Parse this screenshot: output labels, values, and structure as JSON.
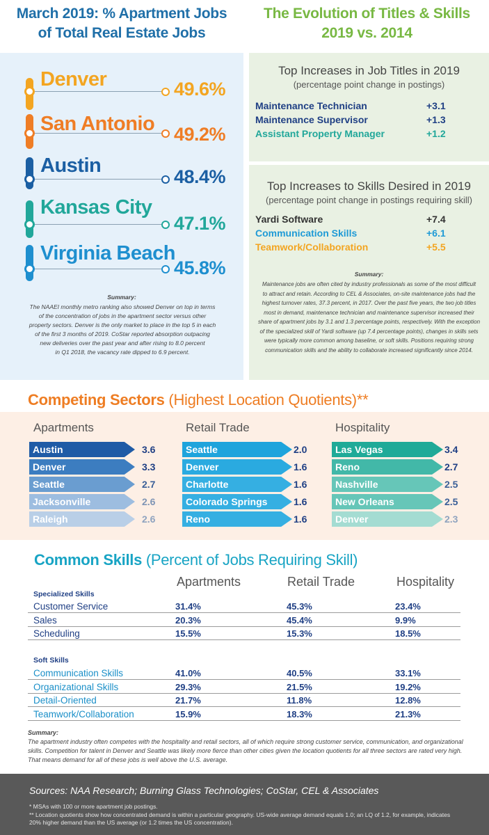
{
  "titles": {
    "left": [
      "March 2019: % Apartment Jobs",
      "of Total Real Estate Jobs"
    ],
    "right": [
      "The Evolution of Titles & Skills",
      "2019 vs. 2014"
    ]
  },
  "metro": {
    "items": [
      {
        "city": "Denver",
        "pct": "49.6%",
        "color": "#f3a521"
      },
      {
        "city": "San Antonio",
        "pct": "49.2%",
        "color": "#ef7d25"
      },
      {
        "city": "Austin",
        "pct": "48.4%",
        "color": "#1b5fa3"
      },
      {
        "city": "Kansas City",
        "pct": "47.1%",
        "color": "#21a79a"
      },
      {
        "city": "Virginia Beach",
        "pct": "45.8%",
        "color": "#1e8fcf"
      }
    ],
    "summary_label": "Summary:",
    "summary_lines": [
      "The NAAEI monthly metro ranking also showed Denver on top in terms",
      "of the concentration of jobs in the apartment sector versus other",
      "property sectors. Denver is the only market to place in the top 5 in each",
      "of the first 3 months of 2019. CoStar reported absorption outpacing",
      "new deliveries over the past year and after rising to 8.0 percent",
      "in Q1 2018, the vacancy rate dipped to 6.9 percent."
    ]
  },
  "job_titles": {
    "heading": "Top Increases in Job Titles in 2019",
    "subheading": "(percentage point change in postings)",
    "items": [
      {
        "name": "Maintenance Technician",
        "value": "+3.1",
        "color": "#1f3f84"
      },
      {
        "name": "Maintenance Supervisor",
        "value": "+1.3",
        "color": "#1f3f84"
      },
      {
        "name": "Assistant Property Manager",
        "value": "+1.2",
        "color": "#21a79a"
      }
    ]
  },
  "skills_desired": {
    "heading": "Top Increases to Skills Desired in 2019",
    "subheading": "(percentage point change in postings requiring skill)",
    "items": [
      {
        "name": "Yardi Software",
        "value": "+7.4",
        "color": "#333333"
      },
      {
        "name": "Communication Skills",
        "value": "+6.1",
        "color": "#1e9ad6"
      },
      {
        "name": "Teamwork/Collaboration",
        "value": "+5.5",
        "color": "#f3a521"
      }
    ],
    "summary_label": "Summary:",
    "summary_lines": [
      "Maintenance jobs are often cited by industry professionals as some of the most difficult",
      "to attract and retain. According to CEL & Associates, on-site maintenance jobs had the",
      "highest turnover rates, 37.3 percent, in 2017. Over the past five years, the two job titles",
      "most in demand, maintenance technician and maintenance supervisor increased their",
      "share of apartment jobs by 3.1 and 1.3 percentage points, respectively. With the exception",
      "of the specialized skill of Yardi software (up 7.4 percentage points), changes in skills sets",
      "were typically more common among baseline, or soft skills. Positions requiring strong",
      "communication skills and the ability to collaborate increased significantly since 2014."
    ]
  },
  "sectors": {
    "title_bold": "Competing Sectors",
    "title_light": " (Highest Location Quotients)**",
    "columns": [
      {
        "heading": "Apartments",
        "rows": [
          {
            "city": "Austin",
            "value": "3.6",
            "color": "#1f5ba6",
            "val_color": "#1f3f84"
          },
          {
            "city": "Denver",
            "value": "3.3",
            "color": "#3c7dc0",
            "val_color": "#1f3f84"
          },
          {
            "city": "Seattle",
            "value": "2.7",
            "color": "#6a9dd0",
            "val_color": "#3a5f98"
          },
          {
            "city": "Jacksonville",
            "value": "2.6",
            "color": "#9dbde0",
            "val_color": "#7f95b5"
          },
          {
            "city": "Raleigh",
            "value": "2.6",
            "color": "#b9cfe7",
            "val_color": "#8fa3bf"
          }
        ]
      },
      {
        "heading": "Retail Trade",
        "rows": [
          {
            "city": "Seattle",
            "value": "2.0",
            "color": "#1ea4dc",
            "val_color": "#1f3f84"
          },
          {
            "city": "Denver",
            "value": "1.6",
            "color": "#2aaae0",
            "val_color": "#1f3f84"
          },
          {
            "city": "Charlotte",
            "value": "1.6",
            "color": "#35afe2",
            "val_color": "#1f3f84"
          },
          {
            "city": "Colorado Springs",
            "value": "1.6",
            "color": "#35afe2",
            "val_color": "#1f3f84"
          },
          {
            "city": "Reno",
            "value": "1.6",
            "color": "#35afe2",
            "val_color": "#1f3f84"
          }
        ]
      },
      {
        "heading": "Hospitality",
        "rows": [
          {
            "city": "Las Vegas",
            "value": "3.4",
            "color": "#1faa98",
            "val_color": "#1f3f84"
          },
          {
            "city": "Reno",
            "value": "2.7",
            "color": "#42b8a8",
            "val_color": "#1f3f84"
          },
          {
            "city": "Nashville",
            "value": "2.5",
            "color": "#66c6b8",
            "val_color": "#3a5f98"
          },
          {
            "city": "New Orleans",
            "value": "2.5",
            "color": "#66c6b8",
            "val_color": "#3a5f98"
          },
          {
            "city": "Denver",
            "value": "2.3",
            "color": "#a4dcd2",
            "val_color": "#8fa3bf"
          }
        ]
      }
    ]
  },
  "common_skills": {
    "title_bold": "Common Skills",
    "title_light": " (Percent of Jobs Requiring Skill)",
    "col_headers": [
      "Apartments",
      "Retail Trade",
      "Hospitality"
    ],
    "specialized_label": "Specialized Skills",
    "specialized": [
      {
        "name": "Customer Service",
        "values": [
          "31.4%",
          "45.3%",
          "23.4%"
        ]
      },
      {
        "name": "Sales",
        "values": [
          "20.3%",
          "45.4%",
          "9.9%"
        ]
      },
      {
        "name": "Scheduling",
        "values": [
          "15.5%",
          "15.3%",
          "18.5%"
        ]
      }
    ],
    "soft_label": "Soft Skills",
    "soft": [
      {
        "name": "Communication Skills",
        "values": [
          "41.0%",
          "40.5%",
          "33.1%"
        ]
      },
      {
        "name": "Organizational Skills",
        "values": [
          "29.3%",
          "21.5%",
          "19.2%"
        ]
      },
      {
        "name": "Detail-Oriented",
        "values": [
          "21.7%",
          "11.8%",
          "12.8%"
        ]
      },
      {
        "name": "Teamwork/Collaboration",
        "values": [
          "15.9%",
          "18.3%",
          "21.3%"
        ]
      }
    ],
    "summary_label": "Summary:",
    "summary": "The apartment industry often competes with the hospitality and retail sectors, all of which require strong customer service, communication, and organizational skills. Competition for talent in Denver and Seattle was likely more fierce than other cities given the location quotients for all three sectors are rated very high. That means demand for all of these jobs is well above the U.S. average."
  },
  "footer": {
    "sources": "Sources:  NAA Research; Burning Glass Technologies; CoStar, CEL & Associates",
    "note1": "* MSAs with 100 or more apartment job postings.",
    "note2": "** Location quotients show how concentrated demand is within a particular geography. US-wide average demand equals 1.0; an LQ of 1.2, for example, indicates 20% higher demand than the US average (or 1.2 times the US concentration)."
  }
}
